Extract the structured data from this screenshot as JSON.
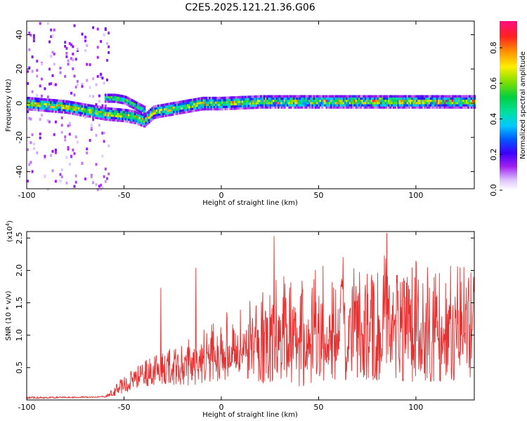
{
  "title": "C2E5.2025.121.21.36.G06",
  "chart_data": [
    {
      "type": "heatmap",
      "xlabel": "Height of straight line (km)",
      "ylabel": "Frequency (Hz)",
      "xlim": [
        -100,
        130
      ],
      "ylim": [
        -50,
        48
      ],
      "xticks": [
        -100,
        -50,
        0,
        50,
        100
      ],
      "yticks": [
        -40,
        -20,
        0,
        20,
        40
      ],
      "colorbar": {
        "label": "Normalized spectral amplitude",
        "range": [
          0,
          0.95
        ],
        "ticks": [
          0.0,
          0.2,
          0.4,
          0.6,
          0.8
        ],
        "tick_labels": [
          "0.0",
          "0.2",
          "0.4",
          "0.6",
          "0.8"
        ]
      },
      "ridge": {
        "x": [
          -100,
          -90,
          -80,
          -70,
          -60,
          -50,
          -45,
          -40,
          -35,
          -30,
          -25,
          -20,
          -10,
          0,
          20,
          40,
          60,
          80,
          100,
          120,
          130
        ],
        "frequency": [
          0,
          -1,
          -2,
          -4,
          -6,
          -7,
          -8,
          -10,
          -5,
          -4,
          -3,
          -2,
          0,
          0,
          1,
          1,
          1,
          1,
          1,
          1,
          1
        ]
      },
      "upper_branch": {
        "x": [
          -60,
          -55,
          -50,
          -45,
          -40
        ],
        "frequency": [
          3,
          3,
          2,
          -1,
          -4
        ]
      }
    },
    {
      "type": "line",
      "xlabel": "Height of straight line (km)",
      "ylabel": "SNR (10 * v/v)",
      "y_multiplier": "(x10",
      "y_multiplier_exp": "4",
      "y_multiplier_close": ")",
      "xlim": [
        -100,
        130
      ],
      "ylim": [
        0,
        2.6
      ],
      "xticks": [
        -100,
        -50,
        0,
        50,
        100
      ],
      "yticks": [
        0.5,
        1.0,
        1.5,
        2.0,
        2.5
      ],
      "ytick_labels": [
        "0.5",
        "1.0",
        "1.5",
        "2.0",
        "2.5"
      ],
      "color": "#e83030",
      "envelope": {
        "x": [
          -100,
          -60,
          -55,
          -50,
          -40,
          -30,
          -20,
          -10,
          0,
          10,
          20,
          30,
          40,
          50,
          60,
          80,
          100,
          120,
          130
        ],
        "base": [
          0.02,
          0.04,
          0.06,
          0.1,
          0.2,
          0.25,
          0.2,
          0.25,
          0.3,
          0.35,
          0.25,
          0.3,
          0.2,
          0.25,
          0.3,
          0.3,
          0.25,
          0.3,
          0.3
        ],
        "peak": [
          0.05,
          0.06,
          0.2,
          0.45,
          0.6,
          0.75,
          0.9,
          1.1,
          1.35,
          1.5,
          1.7,
          1.9,
          2.0,
          2.1,
          2.2,
          2.25,
          2.15,
          2.1,
          2.05
        ]
      },
      "spikes": [
        {
          "x": -31,
          "y": 1.73
        },
        {
          "x": -13,
          "y": 2.04
        },
        {
          "x": 27,
          "y": 2.53
        },
        {
          "x": 85,
          "y": 2.58
        }
      ]
    }
  ]
}
